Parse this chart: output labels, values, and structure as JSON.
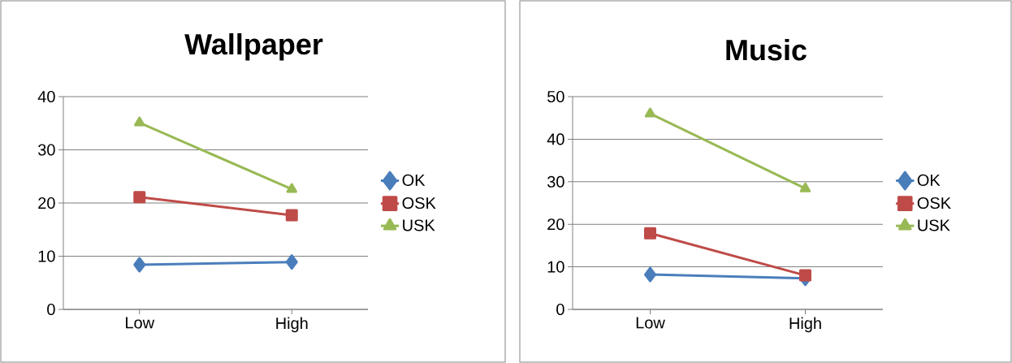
{
  "chart_data": [
    {
      "type": "line",
      "title": "Wallpaper",
      "categories": [
        "Low",
        "High"
      ],
      "series": [
        {
          "name": "OK",
          "color": "#4a7ebb",
          "marker": "diamond",
          "values": [
            8.4,
            8.9
          ]
        },
        {
          "name": "OSK",
          "color": "#be4b48",
          "marker": "square",
          "values": [
            21.1,
            17.7
          ]
        },
        {
          "name": "USK",
          "color": "#98b954",
          "marker": "triangle",
          "values": [
            35.1,
            22.6
          ]
        }
      ],
      "ylim": [
        0,
        40
      ],
      "yticks": [
        0,
        10,
        20,
        30,
        40
      ],
      "grid": "y",
      "legend": "right"
    },
    {
      "type": "line",
      "title": "Music",
      "categories": [
        "Low",
        "High"
      ],
      "series": [
        {
          "name": "OK",
          "color": "#4a7ebb",
          "marker": "diamond",
          "values": [
            8.2,
            7.3
          ]
        },
        {
          "name": "OSK",
          "color": "#be4b48",
          "marker": "square",
          "values": [
            17.9,
            8.0
          ]
        },
        {
          "name": "USK",
          "color": "#98b954",
          "marker": "triangle",
          "values": [
            46.0,
            28.4
          ]
        }
      ],
      "ylim": [
        0,
        50
      ],
      "yticks": [
        0,
        10,
        20,
        30,
        40,
        50
      ],
      "grid": "y",
      "legend": "right"
    }
  ]
}
